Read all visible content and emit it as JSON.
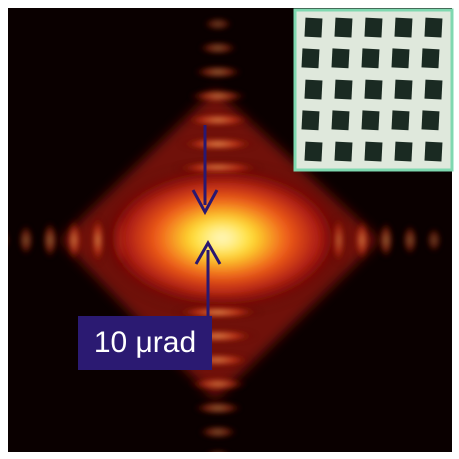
{
  "label": "10 μrad"
}
